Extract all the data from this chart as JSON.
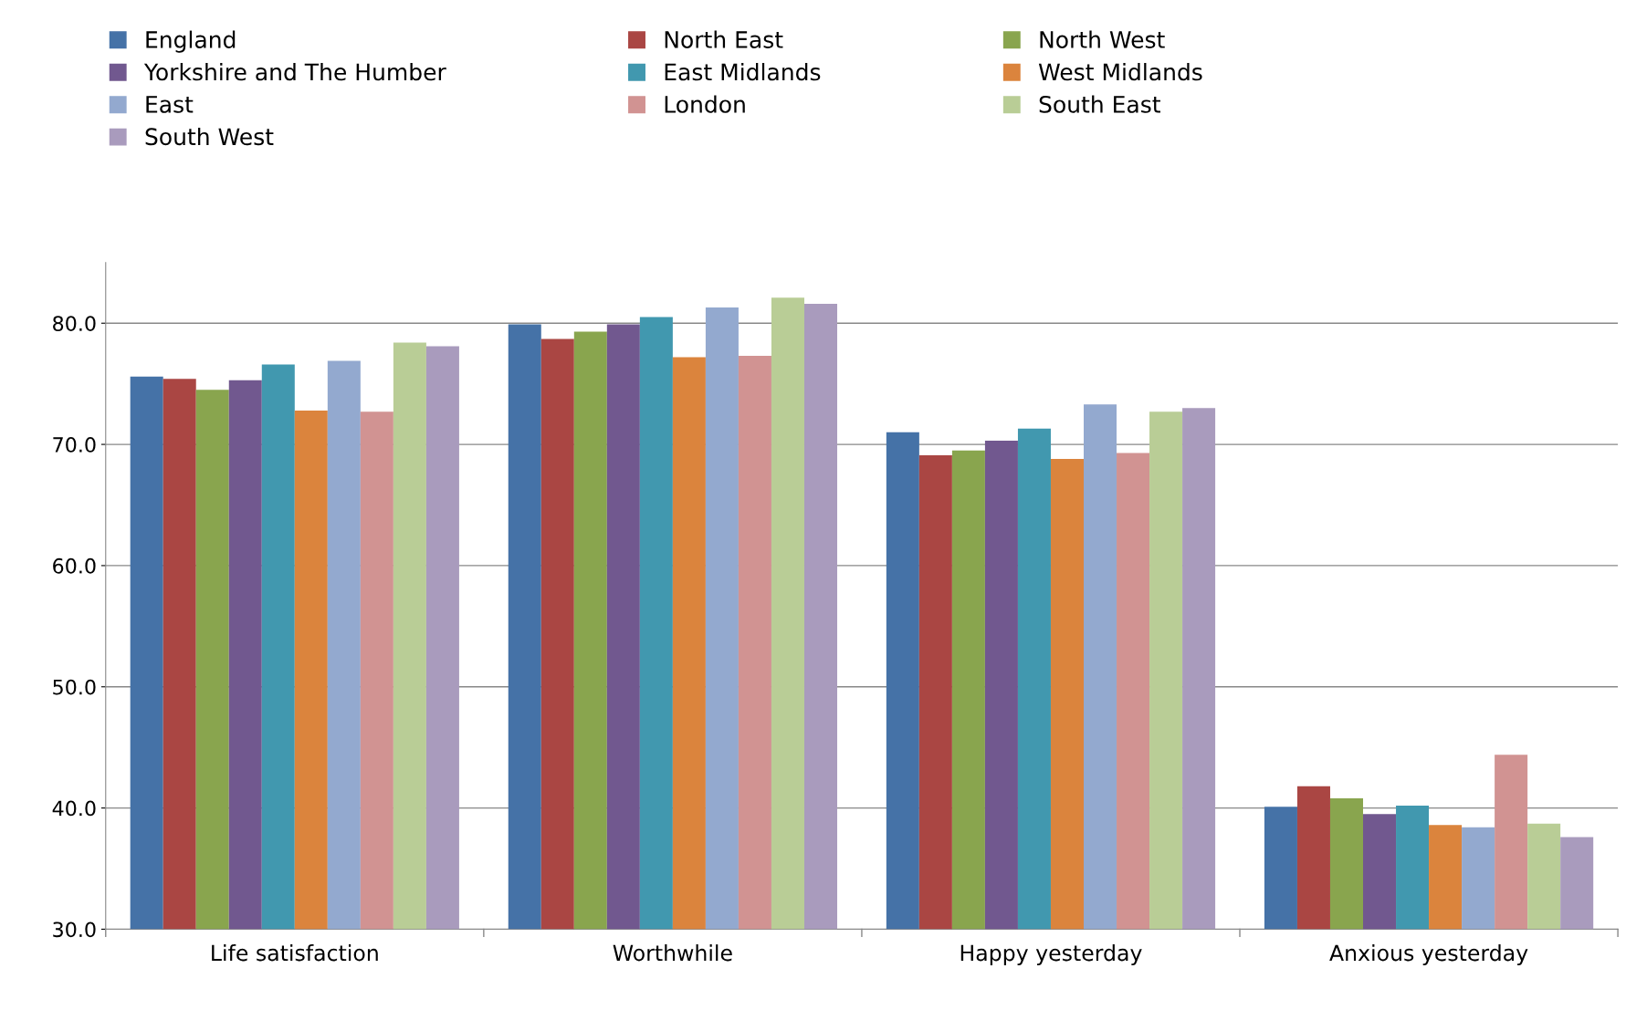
{
  "chart_data": {
    "type": "bar",
    "categories": [
      "Life satisfaction",
      "Worthwhile",
      "Happy yesterday",
      "Anxious yesterday"
    ],
    "series": [
      {
        "name": "England",
        "color": "#4572a7",
        "values": [
          75.6,
          79.9,
          71.0,
          40.1
        ]
      },
      {
        "name": "North East",
        "color": "#aa4643",
        "values": [
          75.4,
          78.7,
          69.1,
          41.8
        ]
      },
      {
        "name": "North West",
        "color": "#89a54e",
        "values": [
          74.5,
          79.3,
          69.5,
          40.8
        ]
      },
      {
        "name": "Yorkshire and The Humber",
        "color": "#71588f",
        "values": [
          75.3,
          79.9,
          70.3,
          39.5
        ]
      },
      {
        "name": "East Midlands",
        "color": "#4198af",
        "values": [
          76.6,
          80.5,
          71.3,
          40.2
        ]
      },
      {
        "name": "West Midlands",
        "color": "#db843d",
        "values": [
          72.8,
          77.2,
          68.8,
          38.6
        ]
      },
      {
        "name": "East",
        "color": "#93a9cf",
        "values": [
          76.9,
          81.3,
          73.3,
          38.4
        ]
      },
      {
        "name": "London",
        "color": "#d19392",
        "values": [
          72.7,
          77.3,
          69.3,
          44.4
        ]
      },
      {
        "name": "South East",
        "color": "#b9cd96",
        "values": [
          78.4,
          82.1,
          72.7,
          38.7
        ]
      },
      {
        "name": "South West",
        "color": "#a99bbd",
        "values": [
          78.1,
          81.6,
          73.0,
          37.6
        ]
      }
    ],
    "ylim": [
      30,
      85
    ],
    "yticks": [
      {
        "value": 30,
        "label": "30.0"
      },
      {
        "value": 40,
        "label": "40.0"
      },
      {
        "value": 50,
        "label": "50.0"
      },
      {
        "value": 60,
        "label": "60.0"
      },
      {
        "value": 70,
        "label": "70.0"
      },
      {
        "value": 80,
        "label": "80.0"
      }
    ],
    "grid": "y",
    "legend": "top"
  }
}
